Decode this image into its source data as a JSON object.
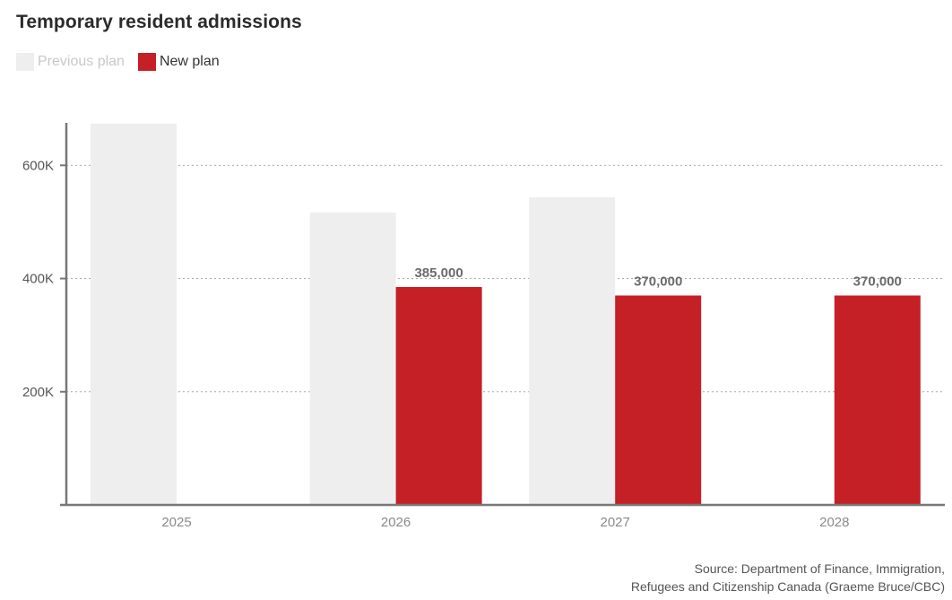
{
  "chart_data": {
    "type": "bar",
    "title": "Temporary resident admissions",
    "categories": [
      "2025",
      "2026",
      "2027",
      "2028"
    ],
    "series": [
      {
        "name": "Previous plan",
        "color": "#eeeeee",
        "values": [
          673650,
          516600,
          543600,
          null
        ]
      },
      {
        "name": "New plan",
        "color": "#c42026",
        "values": [
          null,
          385000,
          370000,
          370000
        ]
      }
    ],
    "data_labels": {
      "New plan": [
        "",
        "385,000",
        "370,000",
        "370,000"
      ]
    },
    "yticks": [
      {
        "value": 200000,
        "label": "200K"
      },
      {
        "value": 400000,
        "label": "400K"
      },
      {
        "value": 600000,
        "label": "600K"
      }
    ],
    "ylim": [
      0,
      675000
    ],
    "grid": true,
    "legend_position": "top-left",
    "xlabel": "",
    "ylabel": ""
  },
  "source": {
    "line1": "Source: Department of Finance, Immigration,",
    "line2": "Refugees and Citizenship Canada (Graeme Bruce/CBC)"
  }
}
